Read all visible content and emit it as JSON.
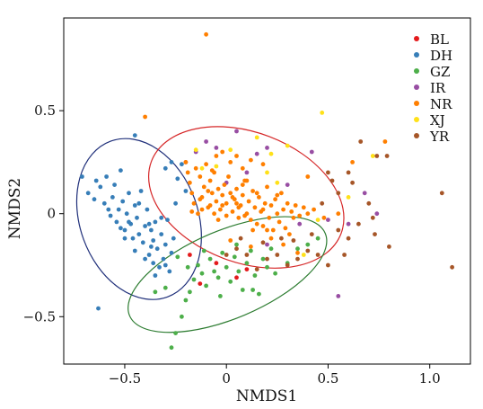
{
  "chart_data": {
    "type": "scatter",
    "title": "",
    "xlabel": "NMDS1",
    "ylabel": "NMDS2",
    "xlim": [
      -0.8,
      1.2
    ],
    "ylim": [
      -0.73,
      0.95
    ],
    "xticks": [
      -0.5,
      0,
      0.5,
      1.0
    ],
    "xtick_labels": [
      "−0.5",
      "0",
      "0.5",
      "1.0"
    ],
    "yticks": [
      -0.5,
      0,
      0.5
    ],
    "ytick_labels": [
      "−0.5",
      "0",
      "0.5"
    ],
    "grid": false,
    "legend_position": "top-right",
    "series": [
      {
        "name": "BL",
        "color": "#e41a1c",
        "points": [
          [
            -0.13,
            -0.34
          ],
          [
            -0.18,
            -0.2
          ],
          [
            0.05,
            -0.31
          ],
          [
            -0.05,
            -0.24
          ],
          [
            0.1,
            -0.27
          ]
        ]
      },
      {
        "name": "DH",
        "color": "#377eb8",
        "points": [
          [
            -0.71,
            0.18
          ],
          [
            -0.68,
            0.1
          ],
          [
            -0.64,
            0.16
          ],
          [
            -0.65,
            0.07
          ],
          [
            -0.62,
            0.13
          ],
          [
            -0.6,
            0.05
          ],
          [
            -0.59,
            0.18
          ],
          [
            -0.57,
            -0.01
          ],
          [
            -0.56,
            0.08
          ],
          [
            -0.55,
            0.14
          ],
          [
            -0.54,
            -0.04
          ],
          [
            -0.53,
            0.02
          ],
          [
            -0.52,
            0.21
          ],
          [
            -0.51,
            0.06
          ],
          [
            -0.5,
            -0.08
          ],
          [
            -0.49,
            0.0
          ],
          [
            -0.48,
            0.1
          ],
          [
            -0.47,
            -0.05
          ],
          [
            -0.46,
            -0.12
          ],
          [
            -0.45,
            0.04
          ],
          [
            -0.44,
            -0.02
          ],
          [
            -0.43,
            -0.1
          ],
          [
            -0.42,
            0.11
          ],
          [
            -0.41,
            -0.14
          ],
          [
            -0.4,
            -0.06
          ],
          [
            -0.39,
            0.02
          ],
          [
            -0.38,
            -0.2
          ],
          [
            -0.37,
            -0.08
          ],
          [
            -0.36,
            -0.13
          ],
          [
            -0.35,
            -0.04
          ],
          [
            -0.34,
            -0.17
          ],
          [
            -0.33,
            -0.26
          ],
          [
            -0.32,
            -0.1
          ],
          [
            -0.31,
            -0.22
          ],
          [
            -0.3,
            -0.15
          ],
          [
            -0.29,
            -0.03
          ],
          [
            -0.28,
            -0.28
          ],
          [
            -0.27,
            -0.19
          ],
          [
            -0.26,
            -0.12
          ],
          [
            -0.3,
            -0.25
          ],
          [
            -0.35,
            -0.3
          ],
          [
            -0.4,
            -0.22
          ],
          [
            -0.45,
            -0.18
          ],
          [
            -0.5,
            -0.12
          ],
          [
            -0.58,
            0.02
          ],
          [
            -0.63,
            -0.46
          ],
          [
            -0.45,
            0.38
          ],
          [
            -0.38,
            -0.05
          ],
          [
            -0.32,
            -0.02
          ],
          [
            -0.43,
            0.05
          ],
          [
            -0.37,
            -0.16
          ],
          [
            -0.48,
            -0.04
          ],
          [
            -0.3,
            0.22
          ],
          [
            -0.27,
            0.25
          ],
          [
            -0.24,
            0.17
          ],
          [
            -0.22,
            0.24
          ],
          [
            -0.2,
            0.11
          ],
          [
            -0.25,
            0.05
          ],
          [
            -0.52,
            -0.07
          ],
          [
            -0.36,
            -0.24
          ]
        ]
      },
      {
        "name": "GZ",
        "color": "#4daf4a",
        "points": [
          [
            -0.27,
            -0.65
          ],
          [
            -0.25,
            -0.58
          ],
          [
            -0.22,
            -0.5
          ],
          [
            -0.2,
            -0.42
          ],
          [
            -0.18,
            -0.38
          ],
          [
            -0.16,
            -0.32
          ],
          [
            -0.14,
            -0.25
          ],
          [
            -0.12,
            -0.29
          ],
          [
            -0.1,
            -0.35
          ],
          [
            -0.08,
            -0.22
          ],
          [
            -0.06,
            -0.28
          ],
          [
            -0.04,
            -0.31
          ],
          [
            -0.02,
            -0.19
          ],
          [
            0.0,
            -0.26
          ],
          [
            0.02,
            -0.33
          ],
          [
            0.04,
            -0.21
          ],
          [
            0.06,
            -0.28
          ],
          [
            0.08,
            -0.37
          ],
          [
            0.1,
            -0.24
          ],
          [
            0.12,
            -0.18
          ],
          [
            0.14,
            -0.3
          ],
          [
            0.16,
            -0.39
          ],
          [
            0.18,
            -0.22
          ],
          [
            0.2,
            -0.26
          ],
          [
            0.22,
            -0.17
          ],
          [
            0.24,
            -0.29
          ],
          [
            -0.3,
            -0.36
          ],
          [
            -0.35,
            -0.38
          ],
          [
            -0.24,
            -0.21
          ],
          [
            -0.19,
            -0.26
          ],
          [
            0.3,
            -0.24
          ],
          [
            0.35,
            -0.17
          ],
          [
            0.4,
            -0.15
          ],
          [
            0.45,
            -0.12
          ],
          [
            -0.11,
            -0.18
          ],
          [
            -0.03,
            -0.4
          ],
          [
            0.13,
            -0.37
          ],
          [
            0.05,
            -0.15
          ]
        ]
      },
      {
        "name": "IR",
        "color": "#984ea3",
        "points": [
          [
            -0.2,
            0.25
          ],
          [
            -0.1,
            0.35
          ],
          [
            -0.05,
            0.32
          ],
          [
            0.05,
            0.4
          ],
          [
            0.1,
            0.2
          ],
          [
            0.15,
            0.29
          ],
          [
            0.2,
            0.32
          ],
          [
            0.0,
            0.15
          ],
          [
            0.42,
            0.3
          ],
          [
            0.5,
            -0.03
          ],
          [
            0.6,
            -0.05
          ],
          [
            0.68,
            0.1
          ],
          [
            0.74,
            0.0
          ],
          [
            0.55,
            -0.4
          ],
          [
            0.2,
            -0.15
          ],
          [
            -0.15,
            0.3
          ],
          [
            0.3,
            0.14
          ],
          [
            0.36,
            -0.05
          ]
        ]
      },
      {
        "name": "NR",
        "color": "#ff7f00",
        "points": [
          [
            -0.1,
            0.87
          ],
          [
            -0.4,
            0.47
          ],
          [
            -0.2,
            0.25
          ],
          [
            -0.19,
            0.2
          ],
          [
            -0.18,
            0.15
          ],
          [
            -0.17,
            0.1
          ],
          [
            -0.16,
            0.05
          ],
          [
            -0.15,
            0.22
          ],
          [
            -0.14,
            0.0
          ],
          [
            -0.13,
            0.18
          ],
          [
            -0.12,
            0.08
          ],
          [
            -0.11,
            0.13
          ],
          [
            -0.1,
            0.24
          ],
          [
            -0.09,
            0.03
          ],
          [
            -0.08,
            0.16
          ],
          [
            -0.07,
            0.1
          ],
          [
            -0.06,
            0.2
          ],
          [
            -0.05,
            0.06
          ],
          [
            -0.04,
            0.12
          ],
          [
            -0.03,
            0.02
          ],
          [
            -0.02,
            0.09
          ],
          [
            -0.01,
            0.14
          ],
          [
            0.0,
            0.05
          ],
          [
            0.01,
            0.18
          ],
          [
            0.02,
            0.1
          ],
          [
            0.03,
            0.01
          ],
          [
            0.04,
            0.07
          ],
          [
            0.05,
            0.12
          ],
          [
            0.06,
            -0.02
          ],
          [
            0.07,
            0.04
          ],
          [
            0.08,
            0.09
          ],
          [
            0.09,
            0.16
          ],
          [
            0.1,
            0.0
          ],
          [
            0.11,
            0.06
          ],
          [
            0.12,
            -0.03
          ],
          [
            0.13,
            0.11
          ],
          [
            0.14,
            0.03
          ],
          [
            0.15,
            -0.05
          ],
          [
            0.16,
            0.08
          ],
          [
            0.17,
            0.01
          ],
          [
            0.18,
            -0.06
          ],
          [
            0.19,
            0.05
          ],
          [
            0.2,
            0.13
          ],
          [
            0.21,
            -0.02
          ],
          [
            0.22,
            0.04
          ],
          [
            0.23,
            -0.08
          ],
          [
            0.24,
            0.07
          ],
          [
            0.25,
            0.0
          ],
          [
            0.26,
            -0.04
          ],
          [
            0.27,
            0.1
          ],
          [
            0.28,
            0.02
          ],
          [
            0.29,
            -0.07
          ],
          [
            0.3,
            0.05
          ],
          [
            0.31,
            -0.1
          ],
          [
            0.32,
            0.01
          ],
          [
            0.33,
            -0.02
          ],
          [
            0.34,
            0.04
          ],
          [
            0.36,
            -0.01
          ],
          [
            0.38,
            0.03
          ],
          [
            0.4,
            0.0
          ],
          [
            0.43,
            0.02
          ],
          [
            -0.05,
            0.28
          ],
          [
            -0.02,
            0.3
          ],
          [
            0.02,
            0.25
          ],
          [
            0.05,
            0.28
          ],
          [
            0.08,
            0.22
          ],
          [
            0.12,
            0.26
          ],
          [
            0.18,
            0.24
          ],
          [
            -0.08,
            0.04
          ],
          [
            -0.06,
            0.0
          ],
          [
            -0.04,
            -0.03
          ],
          [
            -0.02,
            0.04
          ],
          [
            0.0,
            -0.01
          ],
          [
            0.03,
            0.08
          ],
          [
            0.06,
            0.03
          ],
          [
            0.09,
            -0.01
          ],
          [
            -0.12,
            0.02
          ],
          [
            -0.09,
            0.11
          ],
          [
            0.15,
            0.1
          ],
          [
            0.13,
            -0.08
          ],
          [
            0.22,
            -0.12
          ],
          [
            0.28,
            -0.15
          ],
          [
            0.35,
            -0.19
          ],
          [
            0.12,
            -0.16
          ],
          [
            0.02,
            -0.13
          ],
          [
            -0.07,
            0.21
          ],
          [
            0.62,
            0.25
          ],
          [
            0.78,
            0.35
          ],
          [
            0.4,
            0.18
          ],
          [
            0.48,
            -0.02
          ],
          [
            0.55,
            0.0
          ],
          [
            0.05,
            0.05
          ],
          [
            0.08,
            0.14
          ],
          [
            -0.13,
            0.07
          ],
          [
            0.1,
            0.16
          ],
          [
            0.18,
            0.02
          ],
          [
            -0.17,
            0.01
          ],
          [
            0.25,
            0.09
          ],
          [
            0.2,
            -0.08
          ]
        ]
      },
      {
        "name": "XJ",
        "color": "#ffe119",
        "points": [
          [
            0.47,
            0.49
          ],
          [
            0.3,
            0.33
          ],
          [
            0.22,
            0.29
          ],
          [
            0.72,
            0.28
          ],
          [
            -0.05,
            0.23
          ],
          [
            0.2,
            0.2
          ],
          [
            0.25,
            0.15
          ],
          [
            0.45,
            -0.03
          ],
          [
            0.38,
            -0.2
          ],
          [
            -0.12,
            0.22
          ],
          [
            0.02,
            0.31
          ],
          [
            -0.15,
            0.31
          ],
          [
            0.6,
            0.08
          ],
          [
            0.15,
            0.37
          ]
        ]
      },
      {
        "name": "YR",
        "color": "#a65628",
        "points": [
          [
            0.66,
            0.35
          ],
          [
            0.74,
            0.28
          ],
          [
            0.79,
            0.28
          ],
          [
            1.06,
            0.1
          ],
          [
            1.11,
            -0.26
          ],
          [
            0.8,
            -0.16
          ],
          [
            0.73,
            -0.1
          ],
          [
            0.7,
            0.05
          ],
          [
            0.6,
            -0.12
          ],
          [
            0.55,
            -0.08
          ],
          [
            0.5,
            -0.25
          ],
          [
            0.45,
            -0.2
          ],
          [
            0.4,
            -0.18
          ],
          [
            0.35,
            -0.22
          ],
          [
            0.3,
            -0.25
          ],
          [
            0.25,
            -0.2
          ],
          [
            0.2,
            -0.22
          ],
          [
            0.15,
            -0.27
          ],
          [
            0.1,
            -0.2
          ],
          [
            0.05,
            -0.17
          ],
          [
            0.0,
            -0.2
          ],
          [
            0.6,
            0.2
          ],
          [
            0.52,
            0.16
          ],
          [
            0.55,
            0.1
          ],
          [
            0.5,
            0.2
          ],
          [
            0.47,
            0.05
          ],
          [
            0.58,
            -0.2
          ],
          [
            0.65,
            -0.05
          ],
          [
            0.72,
            -0.02
          ],
          [
            0.42,
            -0.1
          ],
          [
            0.33,
            -0.13
          ],
          [
            0.27,
            -0.12
          ],
          [
            0.18,
            -0.14
          ],
          [
            0.07,
            -0.12
          ],
          [
            0.62,
            0.15
          ]
        ]
      }
    ],
    "ellipses": [
      {
        "series": "DH",
        "color": "#1f2f7a"
      },
      {
        "series": "NR",
        "color": "#d62728"
      },
      {
        "series": "GZ",
        "color": "#2e7d32"
      }
    ]
  }
}
